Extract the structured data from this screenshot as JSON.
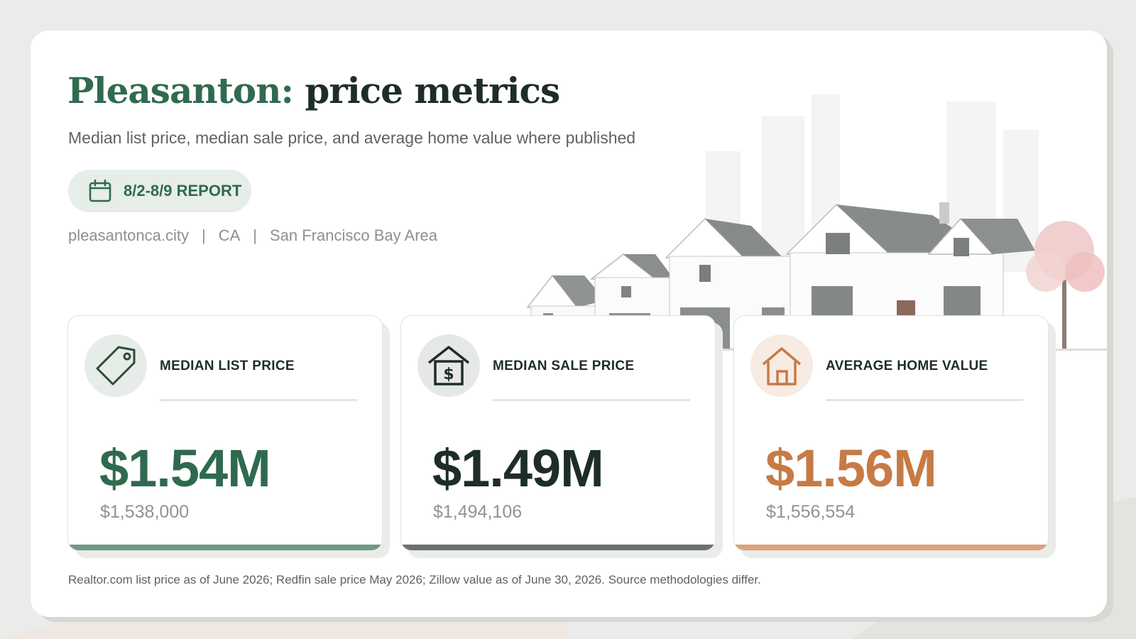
{
  "header": {
    "title_city": "Pleasanton:",
    "title_rest": "price metrics",
    "subtitle": "Median list price, median sale price, and average home value where published"
  },
  "report_pill": {
    "icon": "calendar-icon",
    "label": "8/2-8/9 REPORT"
  },
  "meta": {
    "website": "pleasantonca.city",
    "state": "CA",
    "region": "San Francisco Bay Area",
    "separator": "|"
  },
  "metrics": [
    {
      "icon": "price-tag-icon",
      "label": "MEDIAN LIST PRICE",
      "value": "$1.54M",
      "exact": "$1,538,000",
      "accent": "#2f6a4f",
      "bar_color": "#6f9a84",
      "circle_bg": "#e6ece8"
    },
    {
      "icon": "house-dollar-icon",
      "label": "MEDIAN SALE PRICE",
      "value": "$1.49M",
      "exact": "$1,494,106",
      "accent": "#1e2d27",
      "bar_color": "#6b726d",
      "circle_bg": "#e6e8e6"
    },
    {
      "icon": "home-icon",
      "label": "AVERAGE HOME VALUE",
      "value": "$1.56M",
      "exact": "$1,556,554",
      "accent": "#c67b45",
      "bar_color": "#dca27a",
      "circle_bg": "#f8ebe3"
    }
  ],
  "footnote": "Realtor.com list price as of June 2026; Redfin sale price May 2026; Zillow value as of June 30, 2026. Source methodologies differ."
}
